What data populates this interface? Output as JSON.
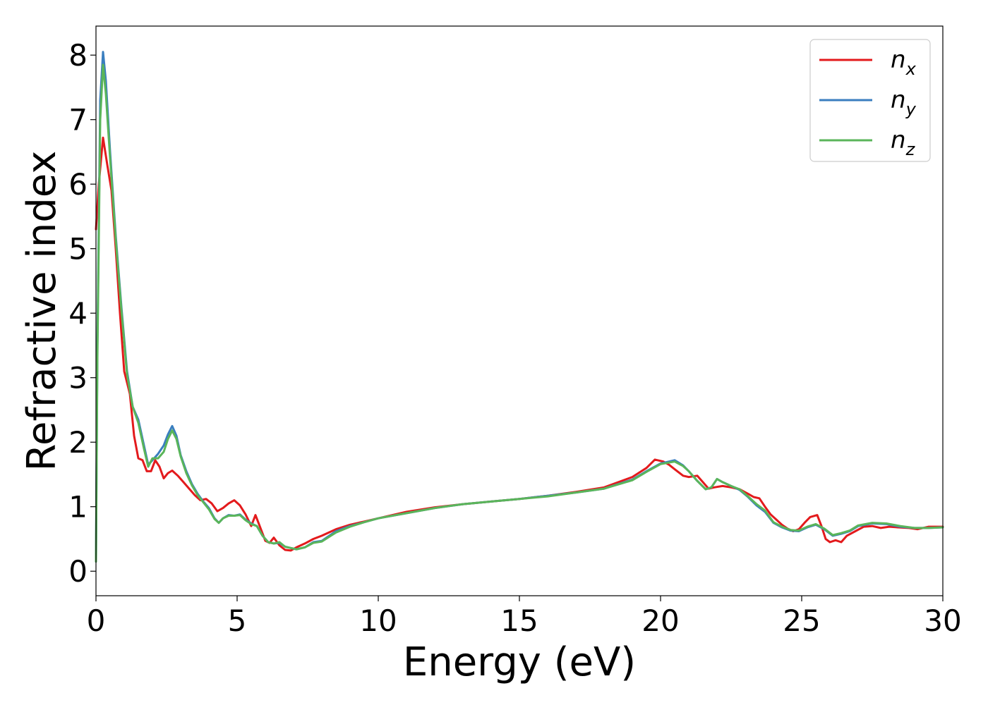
{
  "chart_data": {
    "type": "line",
    "title": "",
    "xlabel": "Energy (eV)",
    "ylabel": "Refractive index",
    "xlim": [
      0,
      30
    ],
    "ylim": [
      -0.38,
      8.45
    ],
    "xticks": [
      0,
      5,
      10,
      15,
      20,
      25,
      30
    ],
    "yticks": [
      0,
      1,
      2,
      3,
      4,
      5,
      6,
      7,
      8
    ],
    "grid": false,
    "legend_position": "top-right",
    "series": [
      {
        "name": "n",
        "subscript": "x",
        "color": "#e31a1c",
        "points": [
          [
            0,
            5.3
          ],
          [
            0.1,
            6.0
          ],
          [
            0.25,
            6.72
          ],
          [
            0.4,
            6.3
          ],
          [
            0.55,
            5.9
          ],
          [
            0.7,
            5.0
          ],
          [
            0.85,
            4.0
          ],
          [
            1.0,
            3.1
          ],
          [
            1.2,
            2.75
          ],
          [
            1.35,
            2.1
          ],
          [
            1.5,
            1.75
          ],
          [
            1.65,
            1.72
          ],
          [
            1.8,
            1.55
          ],
          [
            1.95,
            1.55
          ],
          [
            2.1,
            1.72
          ],
          [
            2.25,
            1.62
          ],
          [
            2.4,
            1.44
          ],
          [
            2.55,
            1.52
          ],
          [
            2.7,
            1.56
          ],
          [
            2.9,
            1.48
          ],
          [
            3.1,
            1.38
          ],
          [
            3.3,
            1.28
          ],
          [
            3.5,
            1.18
          ],
          [
            3.7,
            1.1
          ],
          [
            3.9,
            1.12
          ],
          [
            4.1,
            1.05
          ],
          [
            4.3,
            0.93
          ],
          [
            4.5,
            0.98
          ],
          [
            4.7,
            1.05
          ],
          [
            4.9,
            1.1
          ],
          [
            5.1,
            1.02
          ],
          [
            5.3,
            0.88
          ],
          [
            5.5,
            0.7
          ],
          [
            5.65,
            0.87
          ],
          [
            5.8,
            0.7
          ],
          [
            6.0,
            0.47
          ],
          [
            6.15,
            0.44
          ],
          [
            6.3,
            0.52
          ],
          [
            6.5,
            0.4
          ],
          [
            6.7,
            0.33
          ],
          [
            6.9,
            0.32
          ],
          [
            7.1,
            0.37
          ],
          [
            7.4,
            0.43
          ],
          [
            7.7,
            0.5
          ],
          [
            8.0,
            0.55
          ],
          [
            8.5,
            0.65
          ],
          [
            9.0,
            0.72
          ],
          [
            9.5,
            0.77
          ],
          [
            10.0,
            0.82
          ],
          [
            11.0,
            0.92
          ],
          [
            12.0,
            0.99
          ],
          [
            13.0,
            1.04
          ],
          [
            14.0,
            1.08
          ],
          [
            15.0,
            1.12
          ],
          [
            16.0,
            1.17
          ],
          [
            17.0,
            1.23
          ],
          [
            18.0,
            1.3
          ],
          [
            19.0,
            1.46
          ],
          [
            19.5,
            1.6
          ],
          [
            19.8,
            1.73
          ],
          [
            20.1,
            1.7
          ],
          [
            20.3,
            1.65
          ],
          [
            20.5,
            1.58
          ],
          [
            20.8,
            1.48
          ],
          [
            21.0,
            1.46
          ],
          [
            21.3,
            1.48
          ],
          [
            21.5,
            1.38
          ],
          [
            21.7,
            1.28
          ],
          [
            21.9,
            1.3
          ],
          [
            22.2,
            1.32
          ],
          [
            22.5,
            1.3
          ],
          [
            22.8,
            1.27
          ],
          [
            23.1,
            1.2
          ],
          [
            23.3,
            1.15
          ],
          [
            23.5,
            1.13
          ],
          [
            23.7,
            1.0
          ],
          [
            23.9,
            0.88
          ],
          [
            24.1,
            0.8
          ],
          [
            24.3,
            0.72
          ],
          [
            24.5,
            0.66
          ],
          [
            24.7,
            0.62
          ],
          [
            24.9,
            0.65
          ],
          [
            25.1,
            0.75
          ],
          [
            25.3,
            0.84
          ],
          [
            25.55,
            0.87
          ],
          [
            25.7,
            0.7
          ],
          [
            25.85,
            0.5
          ],
          [
            26.0,
            0.45
          ],
          [
            26.2,
            0.48
          ],
          [
            26.4,
            0.45
          ],
          [
            26.6,
            0.55
          ],
          [
            26.9,
            0.62
          ],
          [
            27.2,
            0.69
          ],
          [
            27.5,
            0.7
          ],
          [
            27.8,
            0.67
          ],
          [
            28.1,
            0.69
          ],
          [
            28.4,
            0.68
          ],
          [
            28.8,
            0.67
          ],
          [
            29.1,
            0.65
          ],
          [
            29.5,
            0.69
          ],
          [
            30.0,
            0.69
          ]
        ]
      },
      {
        "name": "n",
        "subscript": "y",
        "color": "#3a7ebf",
        "points": [
          [
            0,
            0.15
          ],
          [
            0.05,
            3.5
          ],
          [
            0.15,
            7.3
          ],
          [
            0.25,
            8.05
          ],
          [
            0.35,
            7.6
          ],
          [
            0.5,
            6.5
          ],
          [
            0.7,
            5.2
          ],
          [
            0.9,
            4.1
          ],
          [
            1.1,
            3.1
          ],
          [
            1.3,
            2.55
          ],
          [
            1.5,
            2.35
          ],
          [
            1.7,
            1.95
          ],
          [
            1.85,
            1.65
          ],
          [
            2.0,
            1.72
          ],
          [
            2.2,
            1.82
          ],
          [
            2.4,
            1.95
          ],
          [
            2.55,
            2.12
          ],
          [
            2.7,
            2.25
          ],
          [
            2.85,
            2.1
          ],
          [
            3.0,
            1.8
          ],
          [
            3.2,
            1.55
          ],
          [
            3.4,
            1.35
          ],
          [
            3.6,
            1.2
          ],
          [
            3.8,
            1.08
          ],
          [
            4.0,
            0.98
          ],
          [
            4.2,
            0.82
          ],
          [
            4.35,
            0.75
          ],
          [
            4.5,
            0.82
          ],
          [
            4.7,
            0.87
          ],
          [
            4.9,
            0.86
          ],
          [
            5.1,
            0.88
          ],
          [
            5.3,
            0.8
          ],
          [
            5.5,
            0.74
          ],
          [
            5.7,
            0.7
          ],
          [
            5.9,
            0.55
          ],
          [
            6.1,
            0.45
          ],
          [
            6.3,
            0.43
          ],
          [
            6.5,
            0.44
          ],
          [
            6.7,
            0.38
          ],
          [
            6.9,
            0.36
          ],
          [
            7.1,
            0.34
          ],
          [
            7.4,
            0.37
          ],
          [
            7.7,
            0.45
          ],
          [
            8.0,
            0.47
          ],
          [
            8.5,
            0.62
          ],
          [
            9.0,
            0.7
          ],
          [
            9.5,
            0.76
          ],
          [
            10.0,
            0.82
          ],
          [
            11.0,
            0.9
          ],
          [
            12.0,
            0.98
          ],
          [
            13.0,
            1.04
          ],
          [
            14.0,
            1.08
          ],
          [
            15.0,
            1.12
          ],
          [
            16.0,
            1.17
          ],
          [
            17.0,
            1.22
          ],
          [
            18.0,
            1.28
          ],
          [
            19.0,
            1.42
          ],
          [
            19.5,
            1.55
          ],
          [
            20.0,
            1.67
          ],
          [
            20.5,
            1.72
          ],
          [
            20.8,
            1.64
          ],
          [
            21.0,
            1.55
          ],
          [
            21.3,
            1.4
          ],
          [
            21.6,
            1.27
          ],
          [
            21.8,
            1.3
          ],
          [
            22.0,
            1.43
          ],
          [
            22.2,
            1.38
          ],
          [
            22.5,
            1.32
          ],
          [
            22.8,
            1.26
          ],
          [
            23.1,
            1.15
          ],
          [
            23.4,
            1.02
          ],
          [
            23.7,
            0.92
          ],
          [
            24.0,
            0.75
          ],
          [
            24.3,
            0.68
          ],
          [
            24.6,
            0.63
          ],
          [
            24.9,
            0.62
          ],
          [
            25.2,
            0.68
          ],
          [
            25.5,
            0.72
          ],
          [
            25.8,
            0.65
          ],
          [
            26.1,
            0.55
          ],
          [
            26.4,
            0.58
          ],
          [
            26.7,
            0.62
          ],
          [
            27.0,
            0.7
          ],
          [
            27.5,
            0.74
          ],
          [
            28.0,
            0.73
          ],
          [
            28.5,
            0.69
          ],
          [
            29.0,
            0.67
          ],
          [
            29.5,
            0.67
          ],
          [
            30.0,
            0.68
          ]
        ]
      },
      {
        "name": "n",
        "subscript": "z",
        "color": "#5ab55a",
        "points": [
          [
            0,
            0.15
          ],
          [
            0.05,
            3.3
          ],
          [
            0.15,
            7.0
          ],
          [
            0.25,
            7.85
          ],
          [
            0.35,
            7.4
          ],
          [
            0.5,
            6.4
          ],
          [
            0.7,
            5.15
          ],
          [
            0.9,
            4.05
          ],
          [
            1.1,
            3.05
          ],
          [
            1.3,
            2.55
          ],
          [
            1.5,
            2.3
          ],
          [
            1.7,
            1.9
          ],
          [
            1.85,
            1.62
          ],
          [
            2.0,
            1.75
          ],
          [
            2.2,
            1.75
          ],
          [
            2.4,
            1.85
          ],
          [
            2.55,
            2.05
          ],
          [
            2.7,
            2.18
          ],
          [
            2.85,
            2.05
          ],
          [
            3.0,
            1.78
          ],
          [
            3.2,
            1.52
          ],
          [
            3.4,
            1.33
          ],
          [
            3.6,
            1.18
          ],
          [
            3.8,
            1.07
          ],
          [
            4.0,
            0.96
          ],
          [
            4.2,
            0.81
          ],
          [
            4.35,
            0.75
          ],
          [
            4.5,
            0.82
          ],
          [
            4.7,
            0.86
          ],
          [
            4.9,
            0.86
          ],
          [
            5.1,
            0.87
          ],
          [
            5.3,
            0.79
          ],
          [
            5.5,
            0.73
          ],
          [
            5.7,
            0.7
          ],
          [
            5.9,
            0.55
          ],
          [
            6.1,
            0.45
          ],
          [
            6.3,
            0.43
          ],
          [
            6.5,
            0.45
          ],
          [
            6.7,
            0.38
          ],
          [
            6.9,
            0.36
          ],
          [
            7.1,
            0.34
          ],
          [
            7.4,
            0.37
          ],
          [
            7.7,
            0.44
          ],
          [
            8.0,
            0.46
          ],
          [
            8.5,
            0.6
          ],
          [
            9.0,
            0.69
          ],
          [
            9.5,
            0.76
          ],
          [
            10.0,
            0.82
          ],
          [
            11.0,
            0.9
          ],
          [
            12.0,
            0.98
          ],
          [
            13.0,
            1.04
          ],
          [
            14.0,
            1.08
          ],
          [
            15.0,
            1.12
          ],
          [
            16.0,
            1.16
          ],
          [
            17.0,
            1.22
          ],
          [
            18.0,
            1.28
          ],
          [
            19.0,
            1.41
          ],
          [
            19.5,
            1.54
          ],
          [
            20.0,
            1.66
          ],
          [
            20.5,
            1.7
          ],
          [
            20.8,
            1.63
          ],
          [
            21.0,
            1.55
          ],
          [
            21.3,
            1.4
          ],
          [
            21.6,
            1.27
          ],
          [
            21.8,
            1.3
          ],
          [
            22.0,
            1.43
          ],
          [
            22.2,
            1.38
          ],
          [
            22.5,
            1.32
          ],
          [
            22.8,
            1.27
          ],
          [
            23.1,
            1.16
          ],
          [
            23.4,
            1.04
          ],
          [
            23.7,
            0.94
          ],
          [
            24.0,
            0.76
          ],
          [
            24.3,
            0.69
          ],
          [
            24.6,
            0.64
          ],
          [
            24.9,
            0.63
          ],
          [
            25.2,
            0.69
          ],
          [
            25.5,
            0.73
          ],
          [
            25.8,
            0.66
          ],
          [
            26.1,
            0.56
          ],
          [
            26.4,
            0.59
          ],
          [
            26.7,
            0.63
          ],
          [
            27.0,
            0.71
          ],
          [
            27.5,
            0.75
          ],
          [
            28.0,
            0.74
          ],
          [
            28.5,
            0.7
          ],
          [
            29.0,
            0.67
          ],
          [
            29.5,
            0.67
          ],
          [
            30.0,
            0.68
          ]
        ]
      }
    ]
  }
}
